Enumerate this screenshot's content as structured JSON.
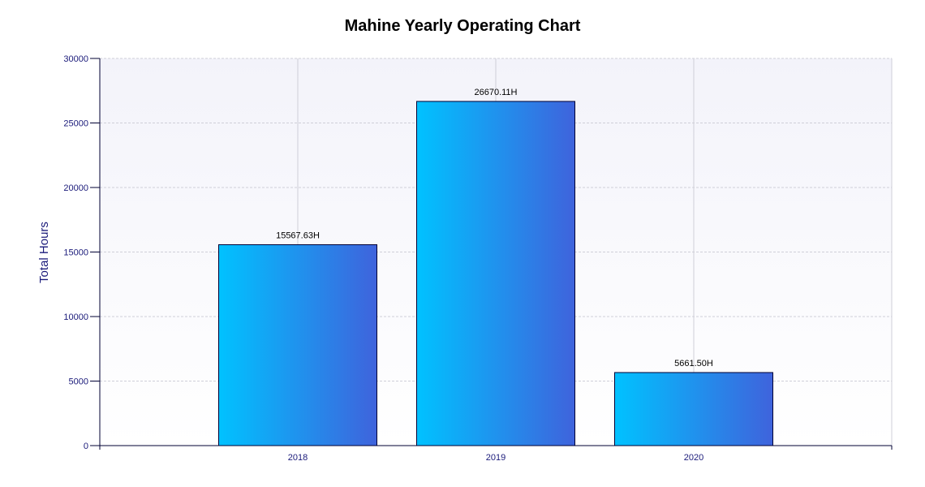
{
  "chart_data": {
    "type": "bar",
    "title": "Mahine Yearly Operating Chart",
    "xlabel": "",
    "ylabel": "Total Hours",
    "categories": [
      "2018",
      "2019",
      "2020"
    ],
    "values": [
      15567.63,
      26670.11,
      5661.5
    ],
    "data_labels": [
      "15567.63H",
      "26670.11H",
      "5661.50H"
    ],
    "ylim": [
      0,
      30000
    ],
    "yticks": [
      0,
      5000,
      10000,
      15000,
      20000,
      25000,
      30000
    ],
    "ytick_labels": [
      "0",
      "5000",
      "10000",
      "15000",
      "20000",
      "25000",
      "30000"
    ],
    "grid": true,
    "legend": "none",
    "colors": {
      "bar_gradient_start": "#00c2ff",
      "bar_gradient_end": "#3f63dc",
      "bar_border": "#000033",
      "axis": "#000033",
      "grid": "#cfcfd8",
      "plot_bg_top": "#f3f3fa",
      "plot_bg_bottom": "#ffffff"
    }
  }
}
